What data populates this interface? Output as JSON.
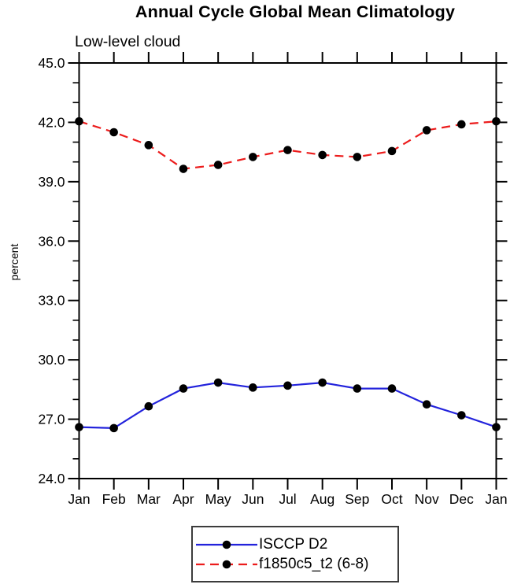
{
  "header": {
    "title": "Annual Cycle Global Mean Climatology",
    "subtitle": "Low-level cloud"
  },
  "chart_data": {
    "type": "line",
    "title": "Annual Cycle Global Mean Climatology",
    "subtitle": "Low-level cloud",
    "xlabel": "",
    "ylabel": "percent",
    "x_categories": [
      "Jan",
      "Feb",
      "Mar",
      "Apr",
      "May",
      "Jun",
      "Jul",
      "Aug",
      "Sep",
      "Oct",
      "Nov",
      "Dec",
      "Jan"
    ],
    "ylim": [
      24.0,
      45.0
    ],
    "ytick_values": [
      24,
      27,
      30,
      33,
      36,
      39,
      42,
      45
    ],
    "ytick_labels": [
      "24.0",
      "27.0",
      "30.0",
      "33.0",
      "36.0",
      "39.0",
      "42.0",
      "45.0"
    ],
    "ytick_minor_step": 1.0,
    "grid": false,
    "legend_position": "bottom-center",
    "series": [
      {
        "name": "ISCCP D2",
        "color": "#2323dc",
        "line_style": "solid",
        "marker": "filled-circle",
        "marker_color": "#000000",
        "values": [
          26.6,
          26.55,
          27.65,
          28.55,
          28.85,
          28.6,
          28.7,
          28.85,
          28.55,
          28.55,
          27.75,
          27.2,
          26.6
        ]
      },
      {
        "name": "f1850c5_t2 (6-8)",
        "color": "#ec1c1c",
        "line_style": "dashed",
        "marker": "filled-circle",
        "marker_color": "#000000",
        "values": [
          42.05,
          41.5,
          40.85,
          39.65,
          39.85,
          40.25,
          40.6,
          40.35,
          40.25,
          40.55,
          41.6,
          41.9,
          42.05
        ]
      }
    ]
  }
}
